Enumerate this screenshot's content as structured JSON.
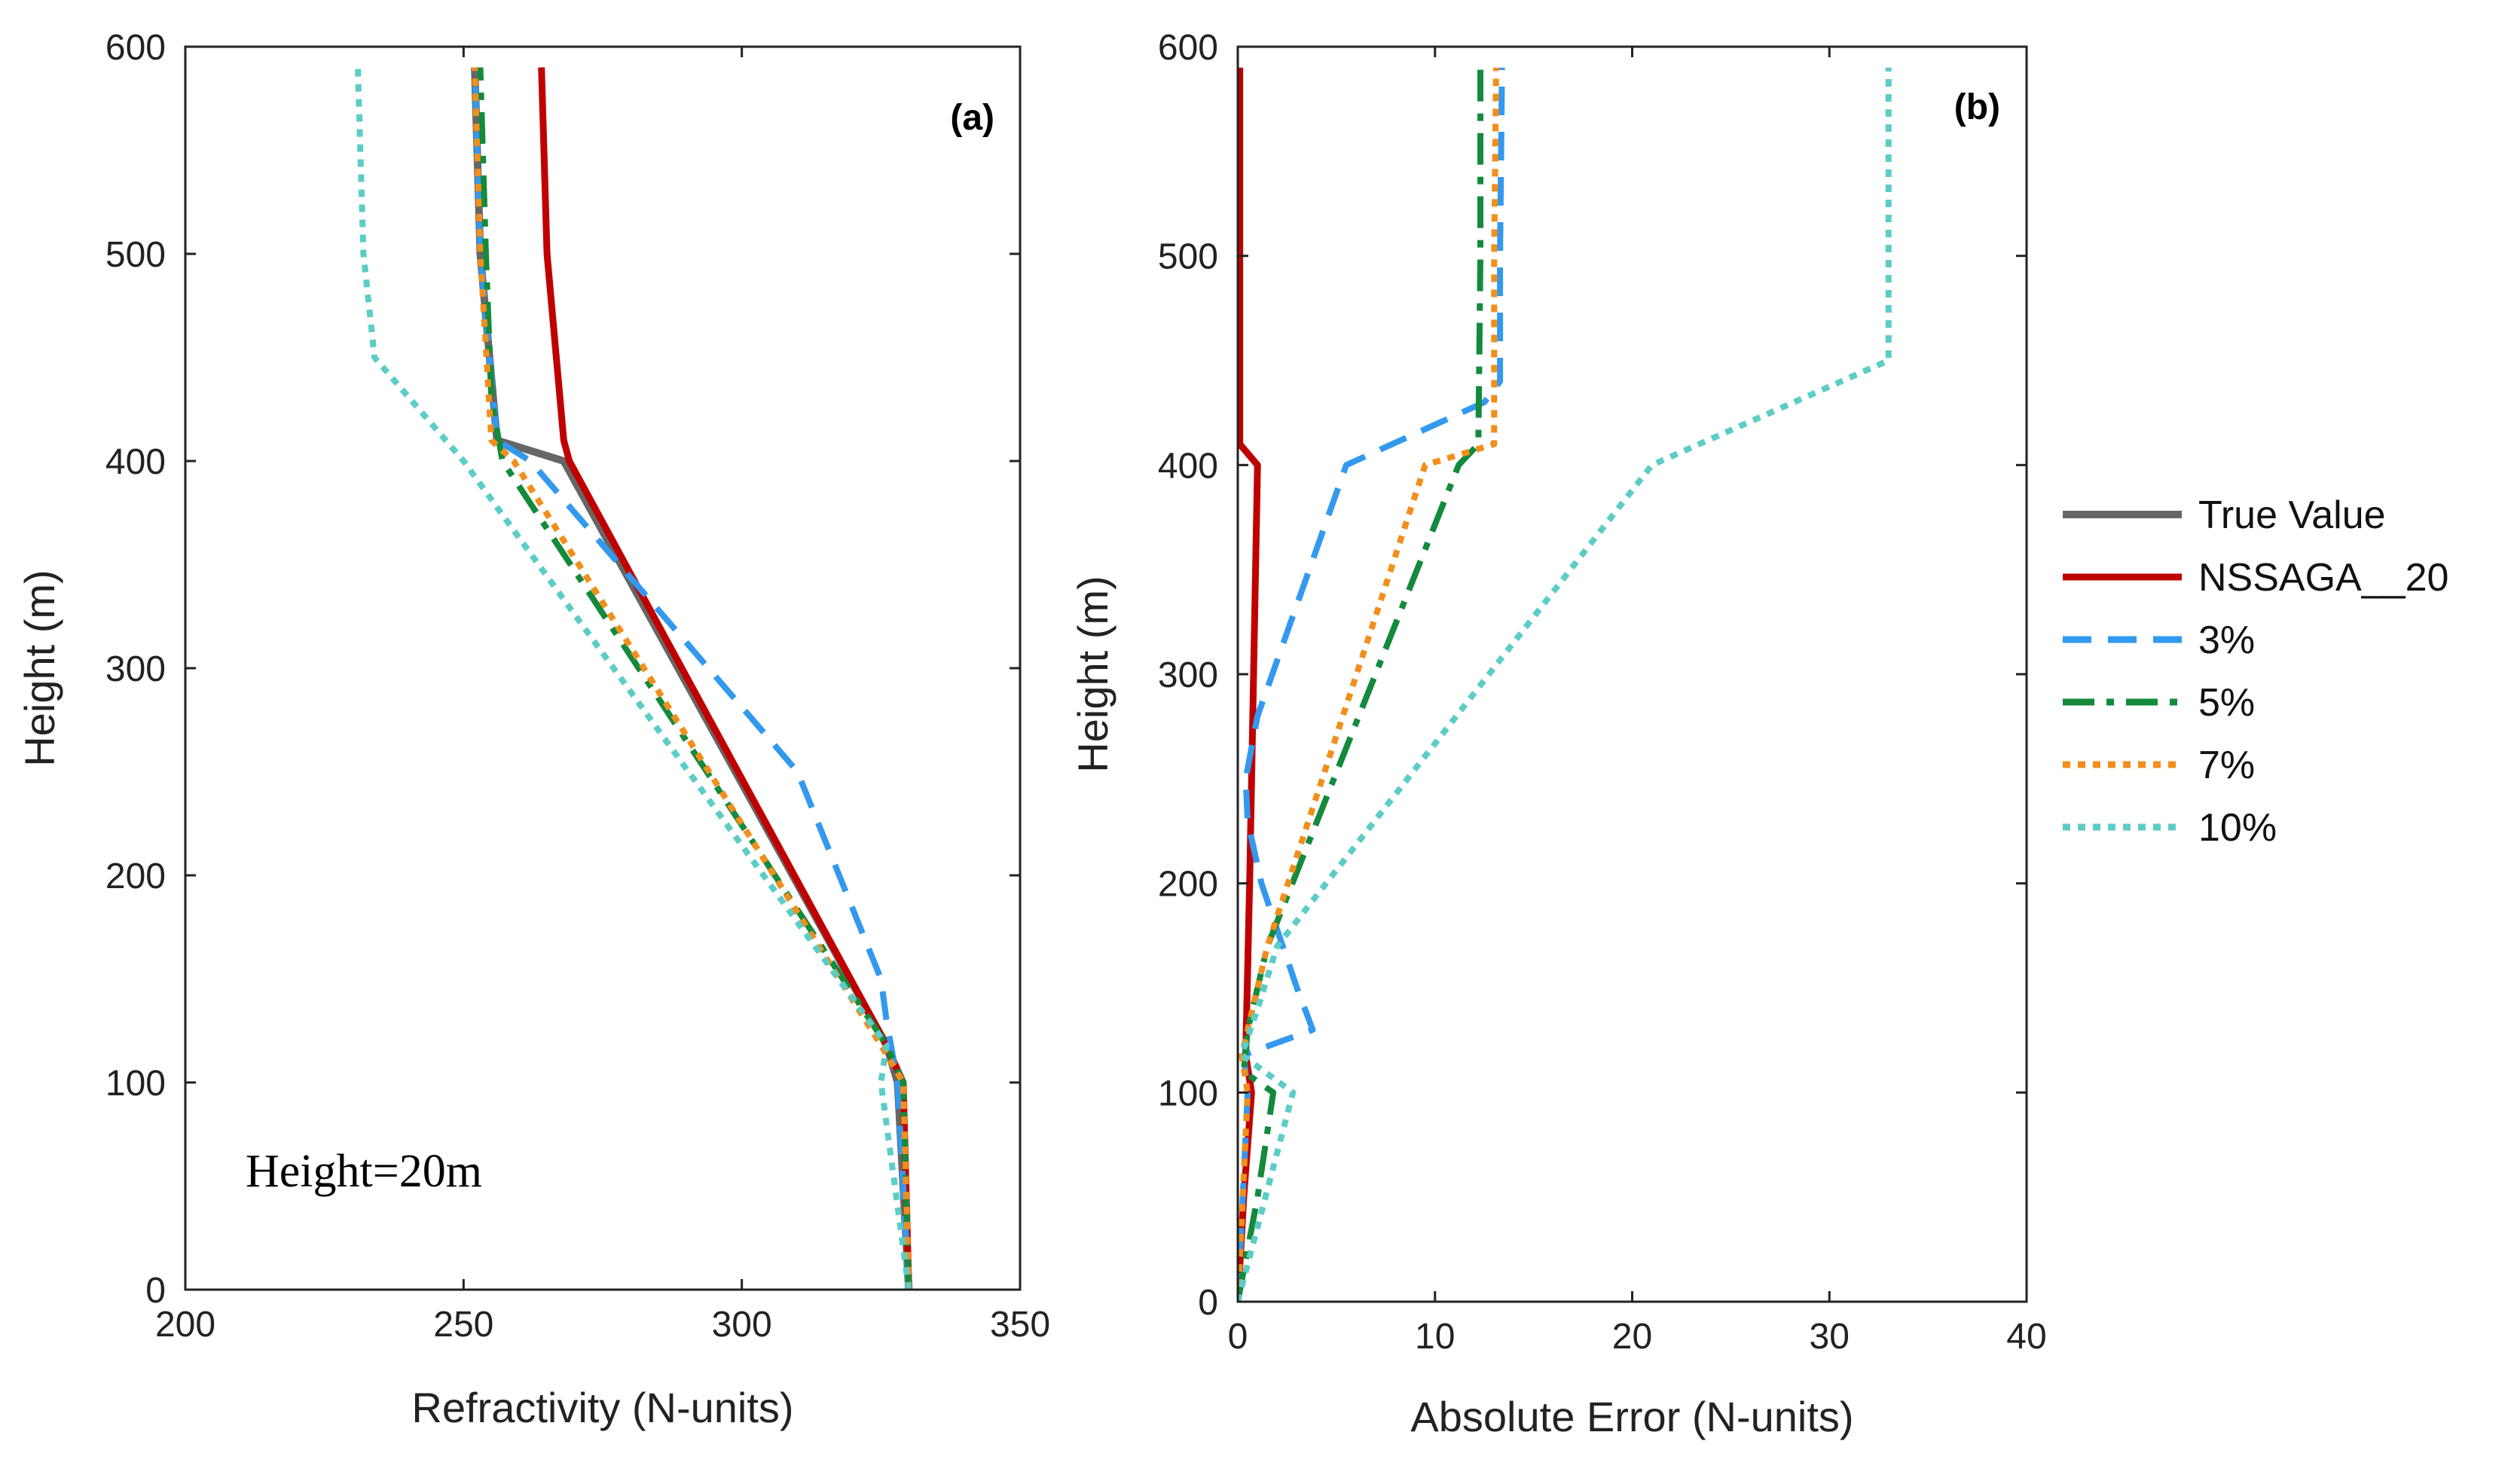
{
  "chart_data": [
    {
      "panel": "a",
      "type": "line",
      "panel_label": "(a)",
      "annotation": "Height=20m",
      "xlabel": "Refractivity (N-units)",
      "ylabel": "Height (m)",
      "xlim": [
        200,
        350
      ],
      "ylim": [
        0,
        600
      ],
      "xticks": [
        200,
        250,
        300,
        350
      ],
      "yticks": [
        0,
        100,
        200,
        300,
        400,
        500,
        600
      ],
      "grid": false,
      "series": [
        {
          "name": "True Value",
          "color": "#666666",
          "dash": "solid",
          "points": [
            [
              330,
              0
            ],
            [
              328,
              100
            ],
            [
              326,
              118
            ],
            [
              268,
              400
            ],
            [
              256,
              410
            ],
            [
              253,
              500
            ],
            [
              252,
              590
            ]
          ]
        },
        {
          "name": "NSSAGA__20",
          "color": "#c00000",
          "dash": "solid",
          "points": [
            [
              330,
              0
            ],
            [
              329,
              100
            ],
            [
              326,
              118
            ],
            [
              269,
              400
            ],
            [
              268,
              410
            ],
            [
              265,
              500
            ],
            [
              264,
              590
            ]
          ]
        },
        {
          "name": "3%",
          "color": "#3399ee",
          "dash": "dashed",
          "points": [
            [
              330,
              0
            ],
            [
              328,
              100
            ],
            [
              326,
              130
            ],
            [
              325,
              150
            ],
            [
              310,
              250
            ],
            [
              262,
              400
            ],
            [
              256,
              410
            ],
            [
              253,
              500
            ],
            [
              252,
              590
            ]
          ]
        },
        {
          "name": "5%",
          "color": "#138a3c",
          "dash": "dashdot",
          "points": [
            [
              330,
              0
            ],
            [
              329,
              100
            ],
            [
              326,
              118
            ],
            [
              257,
              400
            ],
            [
              255,
              430
            ],
            [
              254,
              500
            ],
            [
              253,
              590
            ]
          ]
        },
        {
          "name": "7%",
          "color": "#f28e1c",
          "dash": "dotted",
          "points": [
            [
              330,
              0
            ],
            [
              329,
              100
            ],
            [
              325,
              118
            ],
            [
              259,
              400
            ],
            [
              255,
              410
            ],
            [
              253,
              500
            ],
            [
              252,
              590
            ]
          ]
        },
        {
          "name": "10%",
          "color": "#5ccdc6",
          "dash": "dotted",
          "points": [
            [
              330,
              0
            ],
            [
              325,
              100
            ],
            [
              326,
              118
            ],
            [
              250,
              400
            ],
            [
              234,
              450
            ],
            [
              232,
              500
            ],
            [
              231,
              590
            ]
          ]
        }
      ]
    },
    {
      "panel": "b",
      "type": "line",
      "panel_label": "(b)",
      "xlabel": "Absolute Error (N-units)",
      "ylabel": "Height (m)",
      "xlim": [
        0,
        40
      ],
      "ylim": [
        0,
        600
      ],
      "xticks": [
        0,
        10,
        20,
        30,
        40
      ],
      "yticks": [
        0,
        100,
        200,
        300,
        400,
        500,
        600
      ],
      "grid": false,
      "series": [
        {
          "name": "NSSAGA__20",
          "color": "#c00000",
          "dash": "solid",
          "points": [
            [
              0,
              0
            ],
            [
              0.3,
              50
            ],
            [
              0.7,
              100
            ],
            [
              0.4,
              118
            ],
            [
              0.6,
              200
            ],
            [
              1.0,
              400
            ],
            [
              0.1,
              410
            ],
            [
              0.1,
              500
            ],
            [
              0.1,
              590
            ]
          ]
        },
        {
          "name": "3%",
          "color": "#3399ee",
          "dash": "dashed",
          "points": [
            [
              0,
              0
            ],
            [
              0.5,
              100
            ],
            [
              0.3,
              118
            ],
            [
              3.8,
              130
            ],
            [
              3.0,
              150
            ],
            [
              1.2,
              200
            ],
            [
              0.5,
              230
            ],
            [
              0.4,
              250
            ],
            [
              1.0,
              280
            ],
            [
              5.5,
              400
            ],
            [
              12.5,
              430
            ],
            [
              13.3,
              440
            ],
            [
              13.3,
              500
            ],
            [
              13.4,
              590
            ]
          ]
        },
        {
          "name": "5%",
          "color": "#138a3c",
          "dash": "dashdot",
          "points": [
            [
              0,
              0
            ],
            [
              1.0,
              50
            ],
            [
              1.8,
              100
            ],
            [
              0.3,
              110
            ],
            [
              0.5,
              130
            ],
            [
              1.5,
              170
            ],
            [
              11.2,
              400
            ],
            [
              12.2,
              410
            ],
            [
              12.3,
              500
            ],
            [
              12.3,
              590
            ]
          ]
        },
        {
          "name": "7%",
          "color": "#f28e1c",
          "dash": "dotted",
          "points": [
            [
              0,
              0
            ],
            [
              0.5,
              100
            ],
            [
              0.2,
              118
            ],
            [
              1.5,
              170
            ],
            [
              9.5,
              400
            ],
            [
              13.0,
              410
            ],
            [
              13.0,
              500
            ],
            [
              13.1,
              590
            ]
          ]
        },
        {
          "name": "10%",
          "color": "#5ccdc6",
          "dash": "dotted",
          "points": [
            [
              0,
              0
            ],
            [
              2.8,
              100
            ],
            [
              0.2,
              118
            ],
            [
              1.0,
              140
            ],
            [
              2.0,
              170
            ],
            [
              21.0,
              400
            ],
            [
              33.0,
              450
            ],
            [
              33.0,
              500
            ],
            [
              33.0,
              590
            ]
          ]
        }
      ]
    }
  ],
  "legend": {
    "placement": "right",
    "items": [
      {
        "name": "True Value",
        "color": "#666666",
        "dash": "solid"
      },
      {
        "name": "NSSAGA__20",
        "color": "#c00000",
        "dash": "solid"
      },
      {
        "name": "3%",
        "color": "#3399ee",
        "dash": "dashed"
      },
      {
        "name": "5%",
        "color": "#138a3c",
        "dash": "dashdot"
      },
      {
        "name": "7%",
        "color": "#f28e1c",
        "dash": "dotted"
      },
      {
        "name": "10%",
        "color": "#5ccdc6",
        "dash": "dotted"
      }
    ]
  }
}
